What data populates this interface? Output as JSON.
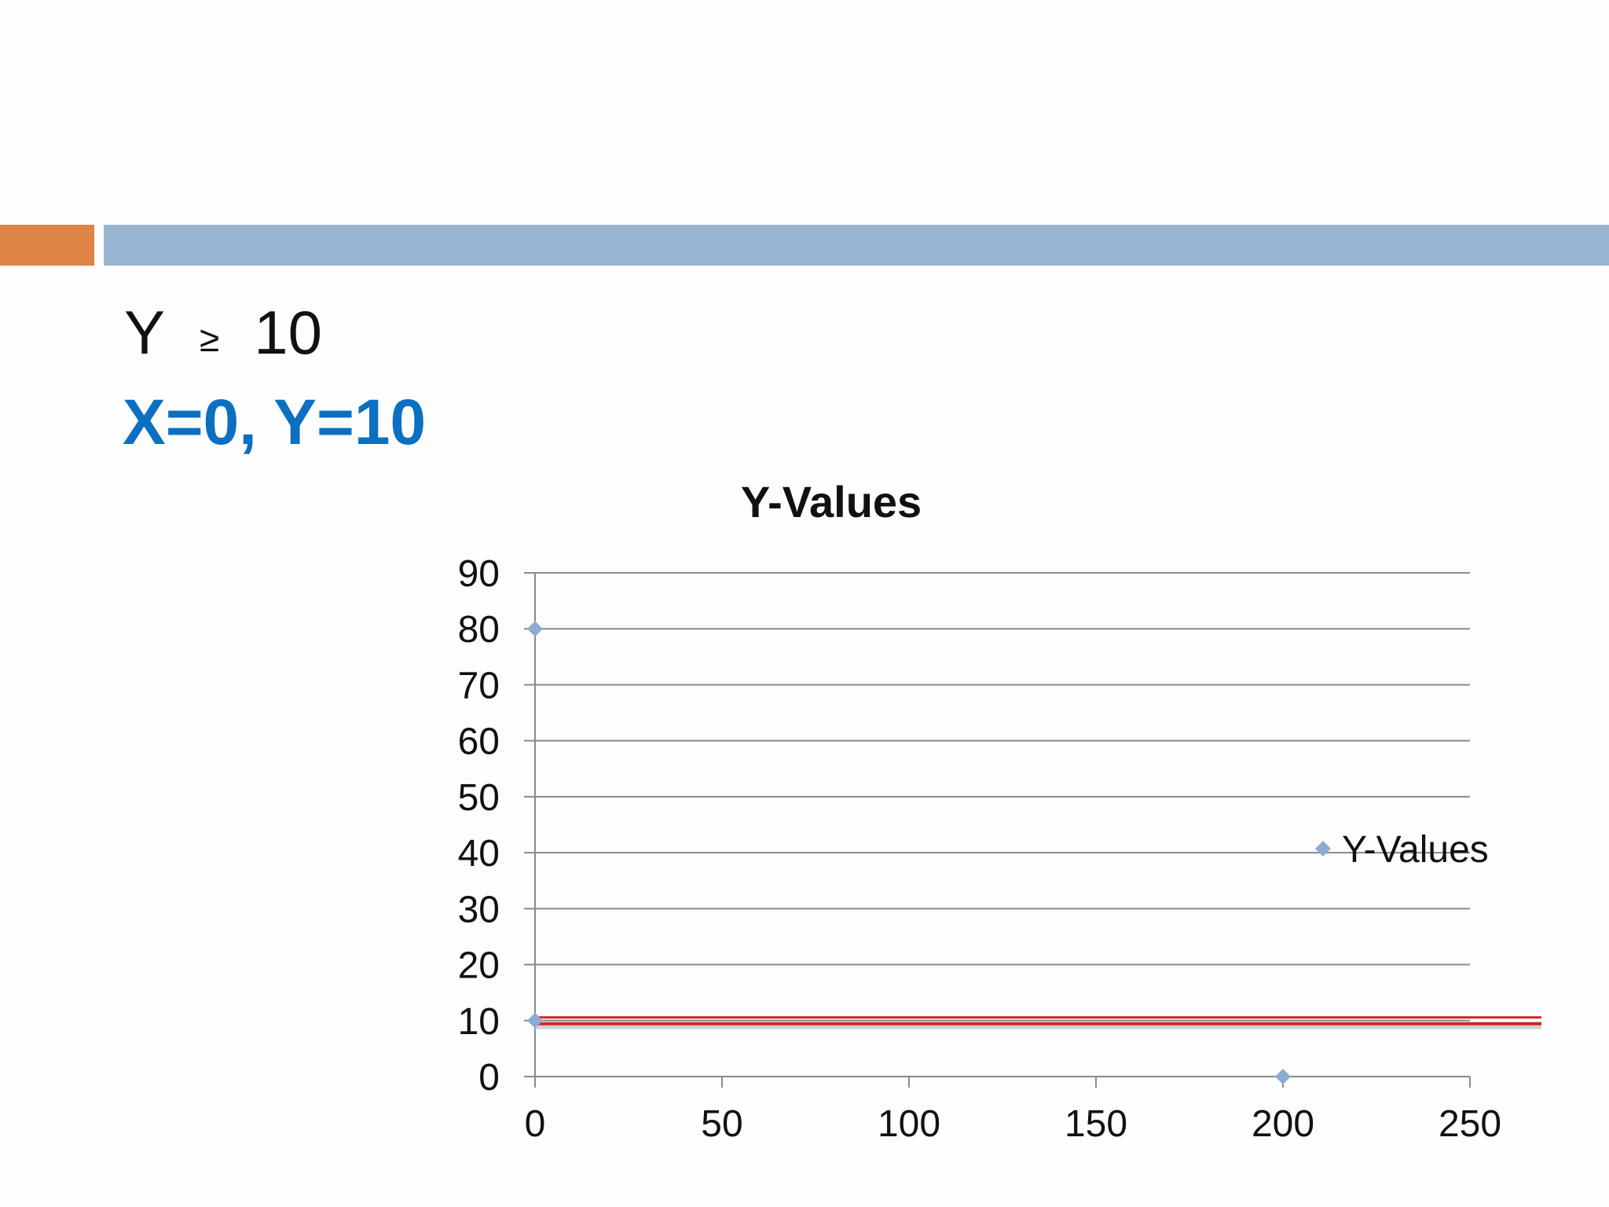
{
  "slide": {
    "line1_var": "Y",
    "line1_op": "≥",
    "line1_val": "10",
    "line2": "X=0, Y=10"
  },
  "colors": {
    "accent_bar": "#dd8344",
    "header_bar": "#98b5d3",
    "highlight_text": "#0b6fc2",
    "marker": "#8eacd0",
    "constraint_line": "#d42424"
  },
  "chart_data": {
    "type": "scatter",
    "title": "Y-Values",
    "xlabel": "",
    "ylabel": "",
    "xlim": [
      0,
      250
    ],
    "ylim": [
      0,
      90
    ],
    "x_ticks": [
      "0",
      "50",
      "100",
      "150",
      "200",
      "250"
    ],
    "y_ticks": [
      "0",
      "10",
      "20",
      "30",
      "40",
      "50",
      "60",
      "70",
      "80",
      "90"
    ],
    "grid": true,
    "legend": "right",
    "series": [
      {
        "name": "Y-Values",
        "points": [
          {
            "x": 0,
            "y": 80
          },
          {
            "x": 0,
            "y": 10
          },
          {
            "x": 200,
            "y": 0
          }
        ]
      }
    ],
    "annotations": [
      {
        "type": "hline",
        "y": 10,
        "color": "#d42424"
      }
    ]
  }
}
